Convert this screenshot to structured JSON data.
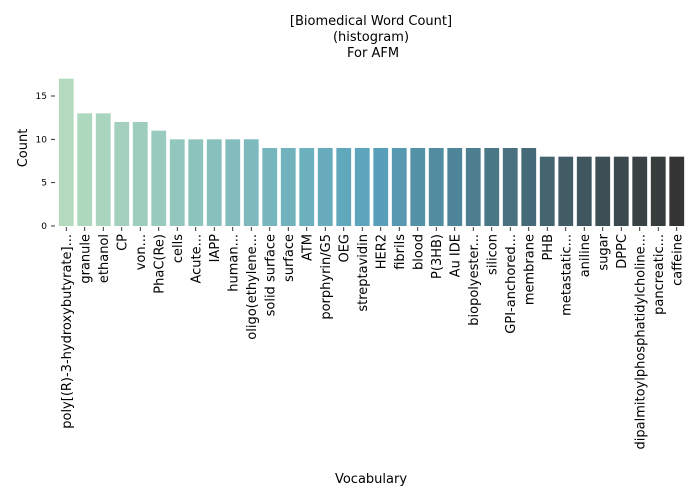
{
  "chart_data": {
    "type": "bar",
    "title_lines": [
      "[Biomedical Word Count]",
      "(histogram)",
      " For AFM"
    ],
    "xlabel": "Vocabulary",
    "ylabel": "Count",
    "ylim": [
      0,
      18
    ],
    "yticks": [
      0,
      5,
      10,
      15
    ],
    "grid": false,
    "legend": "none",
    "categories": [
      "poly[(R)-3-hydroxybutyrate]...",
      "granule",
      "ethanol",
      "CP",
      "von...",
      "PhaC(Re)",
      "cells",
      "Acute...",
      "IAPP",
      "human...",
      "oligo(ethylene...",
      "solid surface",
      "surface",
      "ATM",
      "porphyrin/G5",
      "OEG",
      "streptavidin",
      "HER2",
      "fibrils",
      "blood",
      "P(3HB)",
      "Au IDE",
      "biopolyester...",
      "silicon",
      "GPI-anchored...",
      "membrane",
      "PHB",
      "metastatic...",
      "aniline",
      "sugar",
      "DPPC",
      "dipalmitoylphosphatidylcholine...",
      "pancreatic...",
      "caffeine"
    ],
    "values": [
      17,
      13,
      13,
      12,
      12,
      11,
      10,
      10,
      10,
      10,
      10,
      9,
      9,
      9,
      9,
      9,
      9,
      9,
      9,
      9,
      9,
      9,
      9,
      9,
      9,
      9,
      8,
      8,
      8,
      8,
      8,
      8,
      8,
      8
    ],
    "palette": {
      "start": "#b4dbbd",
      "mid": "#59a3bd",
      "end": "#353535"
    }
  }
}
